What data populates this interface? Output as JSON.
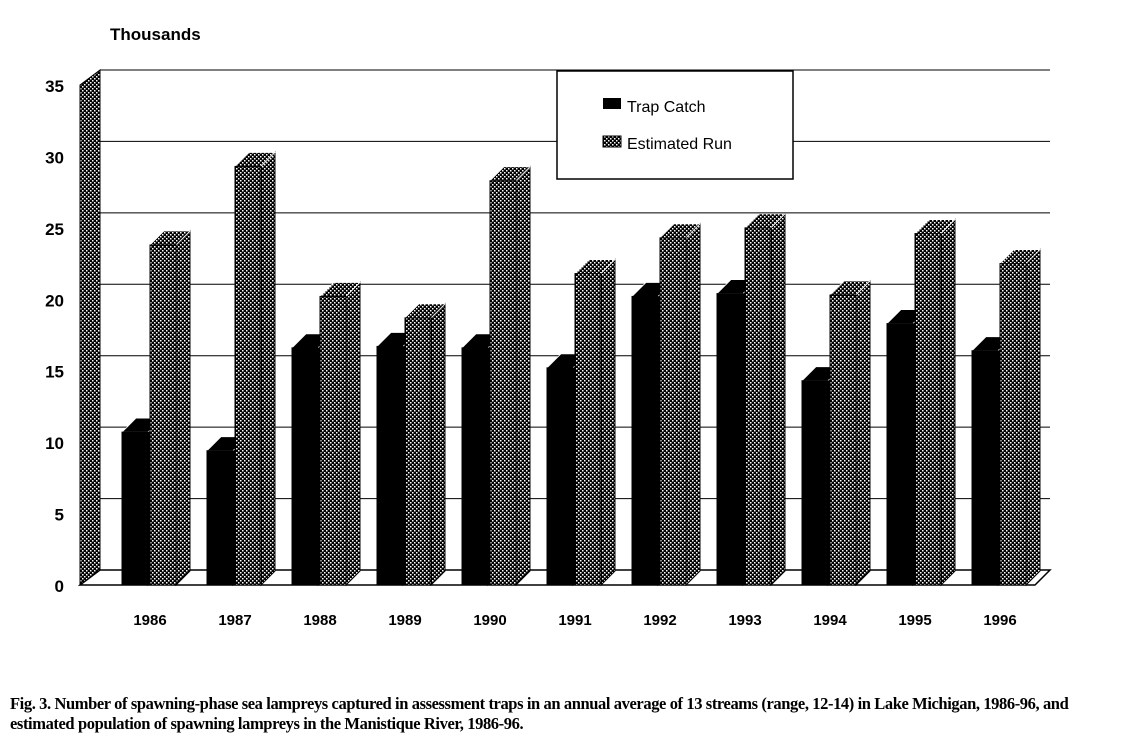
{
  "chart_data": {
    "type": "bar",
    "ylabel": "Thousands",
    "ylim": [
      0,
      35
    ],
    "yticks": [
      0,
      5,
      10,
      15,
      20,
      25,
      30,
      35
    ],
    "grid": true,
    "legend_position": "top-right",
    "categories": [
      "1986",
      "1987",
      "1988",
      "1989",
      "1990",
      "1991",
      "1992",
      "1993",
      "1994",
      "1995",
      "1996"
    ],
    "series": [
      {
        "name": "Trap Catch",
        "values": [
          10.7,
          9.4,
          16.6,
          16.7,
          16.6,
          15.2,
          20.2,
          20.4,
          14.3,
          18.3,
          16.4
        ],
        "color": "#000000",
        "pattern": "solid"
      },
      {
        "name": "Estimated Run",
        "values": [
          23.8,
          29.3,
          20.2,
          18.7,
          28.3,
          21.8,
          24.3,
          25.0,
          20.3,
          24.6,
          22.5
        ],
        "color": "#000000",
        "pattern": "dotted"
      }
    ]
  },
  "caption": "Fig. 3.  Number of spawning-phase sea lampreys captured in assessment traps in an annual average of 13 streams (range, 12-14) in Lake Michigan, 1986-96, and estimated population of spawning lampreys in the Manistique River, 1986-96."
}
